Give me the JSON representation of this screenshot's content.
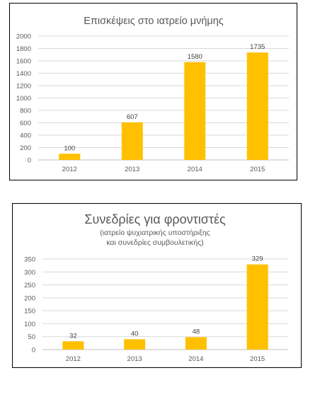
{
  "chart_data": [
    {
      "type": "bar",
      "title": "Επισκέψεις στο ιατρείο μνήμης",
      "categories": [
        "2012",
        "2013",
        "2014",
        "2015"
      ],
      "values": [
        100,
        607,
        1580,
        1735
      ],
      "ylim": [
        0,
        2000
      ],
      "yticks": [
        "0",
        "200",
        "400",
        "600",
        "800",
        "1000",
        "1200",
        "1400",
        "1600",
        "1800",
        "2000"
      ],
      "data_labels": [
        "100",
        "607",
        "1580",
        "1735"
      ],
      "grid": true,
      "color": "#ffc000"
    },
    {
      "type": "bar",
      "title": "Συνεδρίες για φροντιστές",
      "subtitle_lines": [
        "(ιατρείο ψυχιατρικής υποστήριξης",
        "και συνεδρίες συμβουλετικής)"
      ],
      "categories": [
        "2012",
        "2013",
        "2014",
        "2015"
      ],
      "values": [
        32,
        40,
        48,
        329
      ],
      "ylim": [
        0,
        350
      ],
      "yticks": [
        "0",
        "50",
        "100",
        "150",
        "200",
        "250",
        "300",
        "350"
      ],
      "data_labels": [
        "32",
        "40",
        "48",
        "329"
      ],
      "grid": true,
      "color": "#ffc000"
    }
  ]
}
